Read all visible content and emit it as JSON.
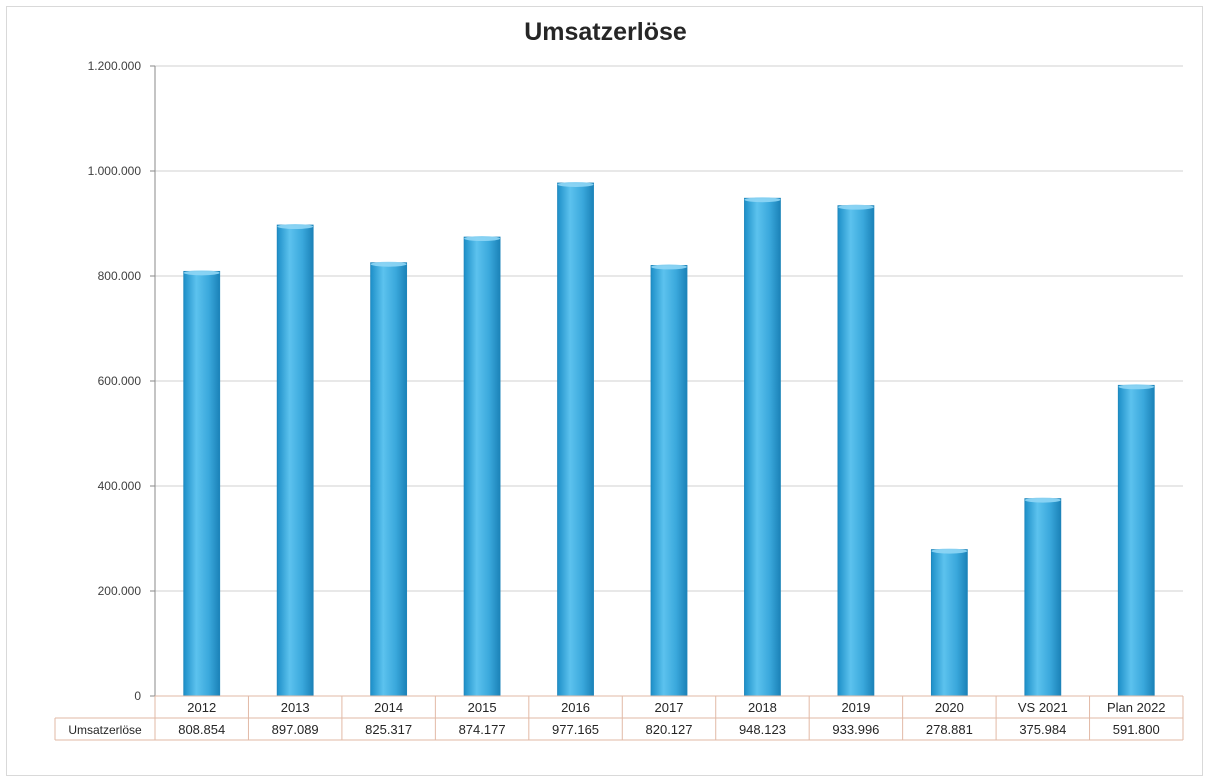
{
  "chart_data": {
    "type": "bar",
    "title": "Umsatzerlöse",
    "categories": [
      "2012",
      "2013",
      "2014",
      "2015",
      "2016",
      "2017",
      "2018",
      "2019",
      "2020",
      "VS 2021",
      "Plan 2022"
    ],
    "series": [
      {
        "name": "Umsatzerlöse",
        "values": [
          808854,
          897089,
          825317,
          874177,
          977165,
          820127,
          948123,
          933996,
          278881,
          375984,
          591800
        ],
        "value_labels": [
          "808.854",
          "897.089",
          "825.317",
          "874.177",
          "977.165",
          "820.127",
          "948.123",
          "933.996",
          "278.881",
          "375.984",
          "591.800"
        ]
      }
    ],
    "ylim": [
      0,
      1200000
    ],
    "yticks": [
      0,
      200000,
      400000,
      600000,
      800000,
      1000000,
      1200000
    ],
    "ytick_labels": [
      "0",
      "200.000",
      "400.000",
      "600.000",
      "800.000",
      "1.000.000",
      "1.200.000"
    ],
    "grid": true,
    "legend": "data-table",
    "bar_color": "#3aa8dc",
    "xlabel": "",
    "ylabel": ""
  }
}
